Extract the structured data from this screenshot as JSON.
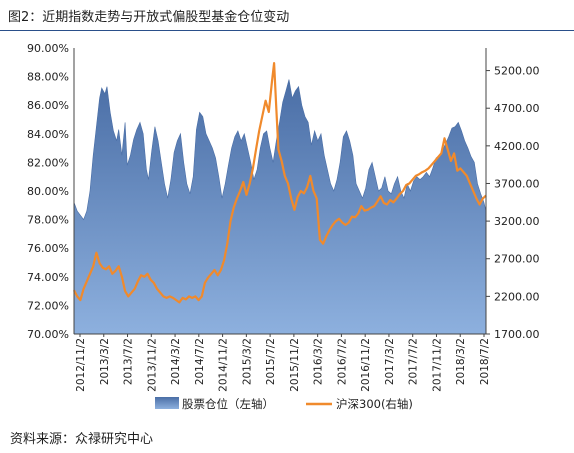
{
  "title": "图2：近期指数走势与开放式偏股型基金仓位变动",
  "source": "资料来源：众禄研究中心",
  "chart_data": {
    "type": "area+line",
    "x_ticks": [
      "2012/11/2",
      "2013/3/2",
      "2013/7/2",
      "2013/11/2",
      "2014/3/2",
      "2014/7/2",
      "2014/11/2",
      "2015/3/2",
      "2015/7/2",
      "2015/11/2",
      "2016/3/2",
      "2016/7/2",
      "2016/11/2",
      "2017/3/2",
      "2017/7/2",
      "2017/11/2",
      "2018/3/2",
      "2018/7/2"
    ],
    "y_left": {
      "ticks": [
        "70.00%",
        "72.00%",
        "74.00%",
        "76.00%",
        "78.00%",
        "80.00%",
        "82.00%",
        "84.00%",
        "86.00%",
        "88.00%",
        "90.00%"
      ],
      "range": [
        70,
        90
      ]
    },
    "y_right": {
      "ticks": [
        "1700.00",
        "2200.00",
        "2700.00",
        "3200.00",
        "3700.00",
        "4200.00",
        "4700.00",
        "5200.00"
      ],
      "range": [
        1700,
        5500
      ]
    },
    "series": [
      {
        "name": "股票仓位（左轴）",
        "axis": "left",
        "kind": "area",
        "color": "#5b7fb4",
        "points": [
          [
            0,
            79.2
          ],
          [
            0.3,
            78.6
          ],
          [
            0.6,
            78.3
          ],
          [
            0.9,
            78.0
          ],
          [
            1.2,
            78.6
          ],
          [
            1.5,
            80.0
          ],
          [
            1.8,
            82.5
          ],
          [
            2.1,
            84.5
          ],
          [
            2.4,
            86.5
          ],
          [
            2.6,
            87.2
          ],
          [
            2.9,
            86.8
          ],
          [
            3.1,
            87.3
          ],
          [
            3.4,
            85.5
          ],
          [
            3.7,
            84.2
          ],
          [
            4.0,
            83.5
          ],
          [
            4.2,
            84.3
          ],
          [
            4.5,
            82.5
          ],
          [
            4.8,
            84.8
          ],
          [
            5.0,
            81.8
          ],
          [
            5.3,
            82.5
          ],
          [
            5.6,
            83.6
          ],
          [
            5.9,
            84.3
          ],
          [
            6.2,
            84.8
          ],
          [
            6.5,
            84.0
          ],
          [
            6.8,
            81.5
          ],
          [
            7.0,
            80.8
          ],
          [
            7.3,
            82.8
          ],
          [
            7.6,
            84.5
          ],
          [
            7.9,
            83.5
          ],
          [
            8.2,
            82.0
          ],
          [
            8.5,
            80.5
          ],
          [
            8.8,
            79.5
          ],
          [
            9.1,
            80.8
          ],
          [
            9.4,
            82.7
          ],
          [
            9.7,
            83.5
          ],
          [
            10.0,
            84.0
          ],
          [
            10.3,
            82.0
          ],
          [
            10.6,
            80.5
          ],
          [
            10.9,
            79.8
          ],
          [
            11.2,
            81.0
          ],
          [
            11.5,
            84.3
          ],
          [
            11.8,
            85.5
          ],
          [
            12.1,
            85.2
          ],
          [
            12.4,
            84.0
          ],
          [
            12.7,
            83.5
          ],
          [
            13.0,
            83.0
          ],
          [
            13.3,
            82.3
          ],
          [
            13.6,
            81.0
          ],
          [
            13.9,
            79.5
          ],
          [
            14.2,
            80.5
          ],
          [
            14.5,
            81.8
          ],
          [
            14.8,
            83.0
          ],
          [
            15.1,
            83.8
          ],
          [
            15.4,
            84.2
          ],
          [
            15.7,
            83.5
          ],
          [
            16.0,
            84.0
          ],
          [
            16.3,
            83.0
          ],
          [
            16.6,
            82.0
          ],
          [
            16.9,
            80.8
          ],
          [
            17.2,
            81.5
          ],
          [
            17.5,
            83.0
          ],
          [
            17.8,
            84.0
          ],
          [
            18.1,
            84.2
          ],
          [
            18.4,
            83.0
          ],
          [
            18.7,
            82.0
          ],
          [
            19.0,
            83.5
          ],
          [
            19.3,
            84.8
          ],
          [
            19.6,
            86.2
          ],
          [
            19.9,
            87.0
          ],
          [
            20.2,
            87.8
          ],
          [
            20.5,
            86.5
          ],
          [
            20.8,
            87.0
          ],
          [
            21.1,
            87.3
          ],
          [
            21.4,
            86.0
          ],
          [
            21.7,
            85.2
          ],
          [
            22.0,
            84.8
          ],
          [
            22.3,
            83.2
          ],
          [
            22.6,
            84.2
          ],
          [
            22.9,
            83.5
          ],
          [
            23.2,
            84.0
          ],
          [
            23.5,
            82.5
          ],
          [
            23.8,
            81.5
          ],
          [
            24.1,
            80.5
          ],
          [
            24.4,
            80.0
          ],
          [
            24.7,
            80.8
          ],
          [
            25.0,
            82.0
          ],
          [
            25.3,
            83.8
          ],
          [
            25.6,
            84.2
          ],
          [
            25.9,
            83.5
          ],
          [
            26.2,
            82.5
          ],
          [
            26.5,
            80.5
          ],
          [
            26.8,
            80.0
          ],
          [
            27.1,
            79.5
          ],
          [
            27.4,
            80.2
          ],
          [
            27.7,
            81.5
          ],
          [
            28.0,
            82.0
          ],
          [
            28.3,
            81.0
          ],
          [
            28.6,
            80.0
          ],
          [
            28.9,
            80.2
          ],
          [
            29.2,
            81.0
          ],
          [
            29.5,
            80.0
          ],
          [
            29.8,
            79.8
          ],
          [
            30.1,
            80.5
          ],
          [
            30.4,
            81.0
          ],
          [
            30.7,
            80.0
          ],
          [
            31.0,
            79.5
          ],
          [
            31.3,
            80.5
          ],
          [
            31.6,
            80.0
          ],
          [
            31.9,
            80.7
          ],
          [
            32.2,
            81.0
          ],
          [
            32.5,
            80.8
          ],
          [
            32.8,
            81.0
          ],
          [
            33.1,
            81.3
          ],
          [
            33.4,
            81.0
          ],
          [
            33.7,
            81.6
          ],
          [
            34.0,
            82.3
          ],
          [
            34.3,
            82.5
          ],
          [
            34.6,
            82.8
          ],
          [
            34.9,
            83.3
          ],
          [
            35.2,
            83.8
          ],
          [
            35.5,
            84.4
          ],
          [
            35.8,
            84.5
          ],
          [
            36.1,
            84.8
          ],
          [
            36.4,
            84.2
          ],
          [
            36.7,
            83.5
          ],
          [
            37.0,
            83.0
          ],
          [
            37.3,
            82.4
          ],
          [
            37.6,
            82.0
          ],
          [
            37.9,
            80.5
          ],
          [
            38.2,
            79.8
          ],
          [
            38.5,
            79.2
          ],
          [
            38.7,
            78.6
          ]
        ]
      },
      {
        "name": "沪深300(右轴)",
        "axis": "right",
        "kind": "line",
        "color": "#f08a2c",
        "points": [
          [
            0,
            2280
          ],
          [
            0.3,
            2200
          ],
          [
            0.6,
            2150
          ],
          [
            0.9,
            2300
          ],
          [
            1.2,
            2400
          ],
          [
            1.5,
            2500
          ],
          [
            1.8,
            2600
          ],
          [
            2.1,
            2780
          ],
          [
            2.4,
            2640
          ],
          [
            2.7,
            2580
          ],
          [
            3.0,
            2560
          ],
          [
            3.3,
            2600
          ],
          [
            3.6,
            2500
          ],
          [
            3.9,
            2540
          ],
          [
            4.2,
            2600
          ],
          [
            4.5,
            2460
          ],
          [
            4.8,
            2270
          ],
          [
            5.1,
            2200
          ],
          [
            5.4,
            2250
          ],
          [
            5.7,
            2300
          ],
          [
            6.0,
            2400
          ],
          [
            6.3,
            2480
          ],
          [
            6.6,
            2460
          ],
          [
            6.9,
            2500
          ],
          [
            7.2,
            2420
          ],
          [
            7.5,
            2380
          ],
          [
            7.8,
            2300
          ],
          [
            8.1,
            2250
          ],
          [
            8.4,
            2200
          ],
          [
            8.7,
            2180
          ],
          [
            9.0,
            2200
          ],
          [
            9.3,
            2180
          ],
          [
            9.6,
            2150
          ],
          [
            9.9,
            2120
          ],
          [
            10.2,
            2180
          ],
          [
            10.5,
            2160
          ],
          [
            10.8,
            2200
          ],
          [
            11.1,
            2180
          ],
          [
            11.4,
            2200
          ],
          [
            11.7,
            2150
          ],
          [
            12.0,
            2200
          ],
          [
            12.3,
            2380
          ],
          [
            12.6,
            2450
          ],
          [
            12.9,
            2500
          ],
          [
            13.2,
            2550
          ],
          [
            13.5,
            2480
          ],
          [
            13.8,
            2550
          ],
          [
            14.1,
            2680
          ],
          [
            14.4,
            2900
          ],
          [
            14.7,
            3200
          ],
          [
            15.0,
            3380
          ],
          [
            15.3,
            3500
          ],
          [
            15.6,
            3600
          ],
          [
            15.9,
            3720
          ],
          [
            16.2,
            3550
          ],
          [
            16.5,
            3700
          ],
          [
            16.8,
            3900
          ],
          [
            17.1,
            4150
          ],
          [
            17.4,
            4400
          ],
          [
            17.7,
            4600
          ],
          [
            18.0,
            4800
          ],
          [
            18.3,
            4650
          ],
          [
            18.6,
            5060
          ],
          [
            18.8,
            5300
          ],
          [
            19.0,
            4700
          ],
          [
            19.2,
            4150
          ],
          [
            19.5,
            4000
          ],
          [
            19.8,
            3800
          ],
          [
            20.1,
            3700
          ],
          [
            20.4,
            3500
          ],
          [
            20.7,
            3350
          ],
          [
            21.0,
            3520
          ],
          [
            21.3,
            3600
          ],
          [
            21.6,
            3570
          ],
          [
            21.9,
            3650
          ],
          [
            22.2,
            3800
          ],
          [
            22.5,
            3600
          ],
          [
            22.8,
            3500
          ],
          [
            23.1,
            2950
          ],
          [
            23.4,
            2900
          ],
          [
            23.7,
            3000
          ],
          [
            24.0,
            3080
          ],
          [
            24.3,
            3150
          ],
          [
            24.6,
            3200
          ],
          [
            24.9,
            3230
          ],
          [
            25.2,
            3180
          ],
          [
            25.5,
            3150
          ],
          [
            25.8,
            3180
          ],
          [
            26.1,
            3260
          ],
          [
            26.4,
            3250
          ],
          [
            26.7,
            3300
          ],
          [
            27.0,
            3400
          ],
          [
            27.3,
            3340
          ],
          [
            27.6,
            3350
          ],
          [
            27.9,
            3380
          ],
          [
            28.2,
            3400
          ],
          [
            28.5,
            3460
          ],
          [
            28.8,
            3530
          ],
          [
            29.1,
            3440
          ],
          [
            29.4,
            3420
          ],
          [
            29.7,
            3480
          ],
          [
            30.0,
            3450
          ],
          [
            30.3,
            3500
          ],
          [
            30.6,
            3560
          ],
          [
            30.9,
            3600
          ],
          [
            31.2,
            3680
          ],
          [
            31.5,
            3700
          ],
          [
            31.8,
            3750
          ],
          [
            32.1,
            3800
          ],
          [
            32.4,
            3820
          ],
          [
            32.7,
            3850
          ],
          [
            33.0,
            3870
          ],
          [
            33.3,
            3900
          ],
          [
            33.6,
            3950
          ],
          [
            33.9,
            4000
          ],
          [
            34.2,
            4050
          ],
          [
            34.5,
            4100
          ],
          [
            34.8,
            4300
          ],
          [
            35.1,
            4150
          ],
          [
            35.4,
            4000
          ],
          [
            35.7,
            4100
          ],
          [
            36.0,
            3870
          ],
          [
            36.3,
            3900
          ],
          [
            36.6,
            3850
          ],
          [
            36.9,
            3800
          ],
          [
            37.2,
            3700
          ],
          [
            37.5,
            3600
          ],
          [
            37.8,
            3500
          ],
          [
            38.1,
            3420
          ],
          [
            38.4,
            3500
          ],
          [
            38.7,
            3540
          ]
        ]
      }
    ],
    "legend": {
      "position": "bottom"
    }
  }
}
